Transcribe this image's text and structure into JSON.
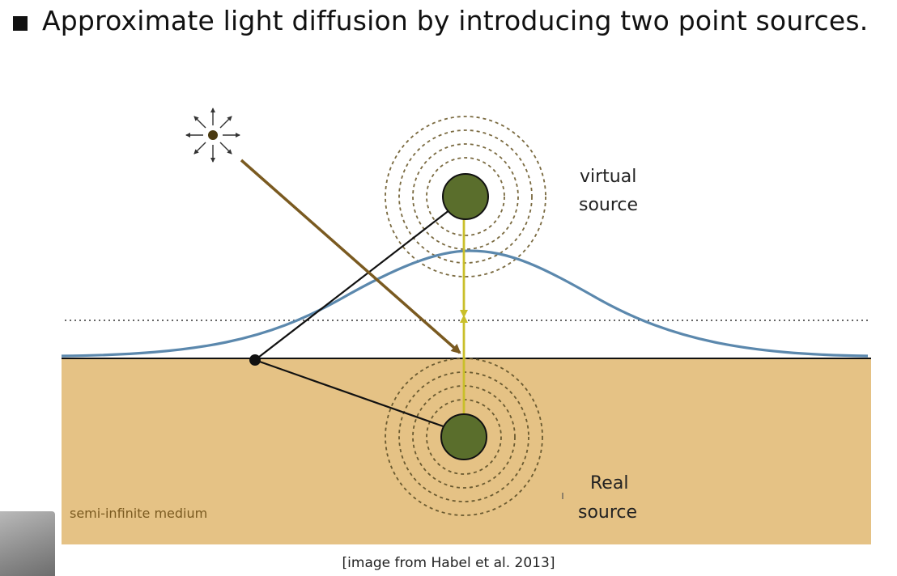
{
  "slide": {
    "title": "Approximate light diffusion by introducing two point sources."
  },
  "diagram": {
    "labels": {
      "virtual_line1": "virtual",
      "virtual_line2": "source",
      "real_line1": "Real",
      "real_line2": "source",
      "medium": "semi-infinite medium"
    },
    "colors": {
      "medium": "#e5c285",
      "source_fill": "#5a6e2c",
      "incident_ray": "#7a5a20",
      "dipole_arrow": "#c9bf2a",
      "profile_curve": "#5b88ad",
      "ring": "#7a6a40"
    }
  },
  "caption": "[image from Habel et al. 2013]"
}
